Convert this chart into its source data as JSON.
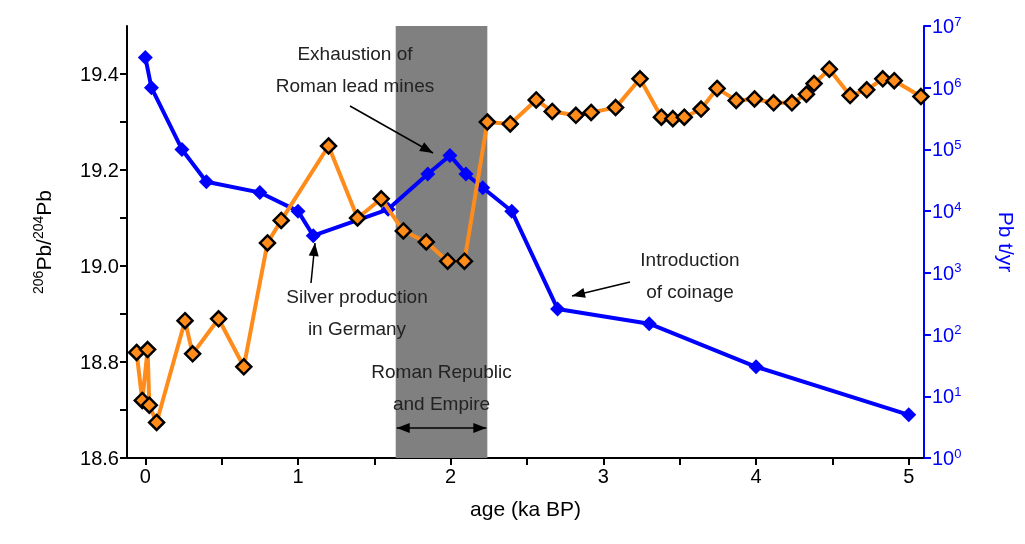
{
  "chart_data": {
    "type": "line",
    "xlabel": "age (ka BP)",
    "ylabel": "$^{206}$Pb/$^{204}$Pb",
    "y2label": "Pb t/yr",
    "xlim": [
      -0.12,
      5.1
    ],
    "xticks": [
      0,
      {
        "value": 0.5,
        "label": null
      },
      1,
      {
        "value": 1.5,
        "label": null
      },
      2,
      {
        "value": 2.5,
        "label": null
      },
      3,
      {
        "value": 3.5,
        "label": null
      },
      4,
      {
        "value": 4.5,
        "label": null
      },
      5
    ],
    "ylim": [
      18.6,
      19.5
    ],
    "yticks": [
      "18.6",
      {
        "value": 18.7,
        "label": null
      },
      {
        "value": 18.8,
        "label": "18.8"
      },
      {
        "value": 18.9,
        "label": null
      },
      {
        "value": 19.0,
        "label": "19.0"
      },
      {
        "value": 19.1,
        "label": null
      },
      {
        "value": 19.2,
        "label": "19.2"
      },
      {
        "value": 19.3,
        "label": null
      },
      {
        "value": 19.4,
        "label": "19.4"
      }
    ],
    "y2lim": [
      1,
      10000000
    ],
    "y2ticks": [
      {
        "value": 1,
        "label": "10$^{0}$"
      },
      {
        "value": 10,
        "label": "10$^{1}$"
      },
      {
        "value": 100,
        "label": "10$^{2}$"
      },
      {
        "value": 1000,
        "label": "10$^{3}$"
      },
      {
        "value": 10000,
        "label": "10$^{4}$"
      },
      {
        "value": 100000,
        "label": "10$^{5}$"
      },
      {
        "value": 1000000,
        "label": "10$^{6}$"
      },
      {
        "value": 10000000,
        "label": "10$^{7}$"
      }
    ],
    "log": "y2",
    "grid": false,
    "marker": "diamond",
    "line_style": "solid",
    "series": [
      {
        "color": "#ff8c1a",
        "x": [
          -0.057,
          -0.02,
          0.015,
          0.026,
          0.074,
          0.26,
          0.31,
          0.48,
          0.645,
          0.8,
          0.89,
          1.2,
          1.39,
          1.545,
          1.69,
          1.84,
          1.98,
          2.09,
          2.24,
          2.39,
          2.56,
          2.665,
          2.82,
          2.92,
          3.08,
          3.24,
          3.38,
          3.455,
          3.53,
          3.64,
          3.745,
          3.87,
          3.99,
          4.115,
          4.235,
          4.33,
          4.38,
          4.48,
          4.616,
          4.725,
          4.83,
          4.905,
          5.08
        ],
        "values": [
          18.82,
          18.72,
          18.826,
          18.71,
          18.674,
          18.886,
          18.817,
          18.89,
          18.79,
          19.048,
          19.095,
          19.25,
          19.1,
          19.14,
          19.073,
          19.05,
          19.01,
          19.01,
          19.3,
          19.296,
          19.346,
          19.322,
          19.314,
          19.32,
          19.33,
          19.39,
          19.31,
          19.307,
          19.31,
          19.327,
          19.37,
          19.345,
          19.348,
          19.34,
          19.34,
          19.358,
          19.38,
          19.41,
          19.355,
          19.367,
          19.39,
          19.386,
          19.353
        ]
      },
      {
        "color": "#0000ff",
        "axis": "y2",
        "x": [
          0,
          0.04,
          0.24,
          0.4,
          0.75,
          1.0,
          1.1,
          1.59,
          1.85,
          1.995,
          2.1,
          2.21,
          2.4,
          2.7,
          3.3,
          4.0,
          5.0
        ],
        "values": [
          3100000,
          1000000,
          100000,
          30000,
          20000,
          10000,
          4000,
          10700,
          40000,
          80000,
          40000,
          24000,
          10000,
          260,
          150,
          30,
          5
        ]
      }
    ],
    "bands": [
      {
        "axis": "x",
        "from": 1.64,
        "to": 2.24,
        "label": "Roman Republic and Empire",
        "color": "#808080"
      }
    ],
    "annotations": [
      "Exhaustion of Roman lead mines",
      "Silver production in Germany",
      "Introduction of coinage"
    ]
  }
}
